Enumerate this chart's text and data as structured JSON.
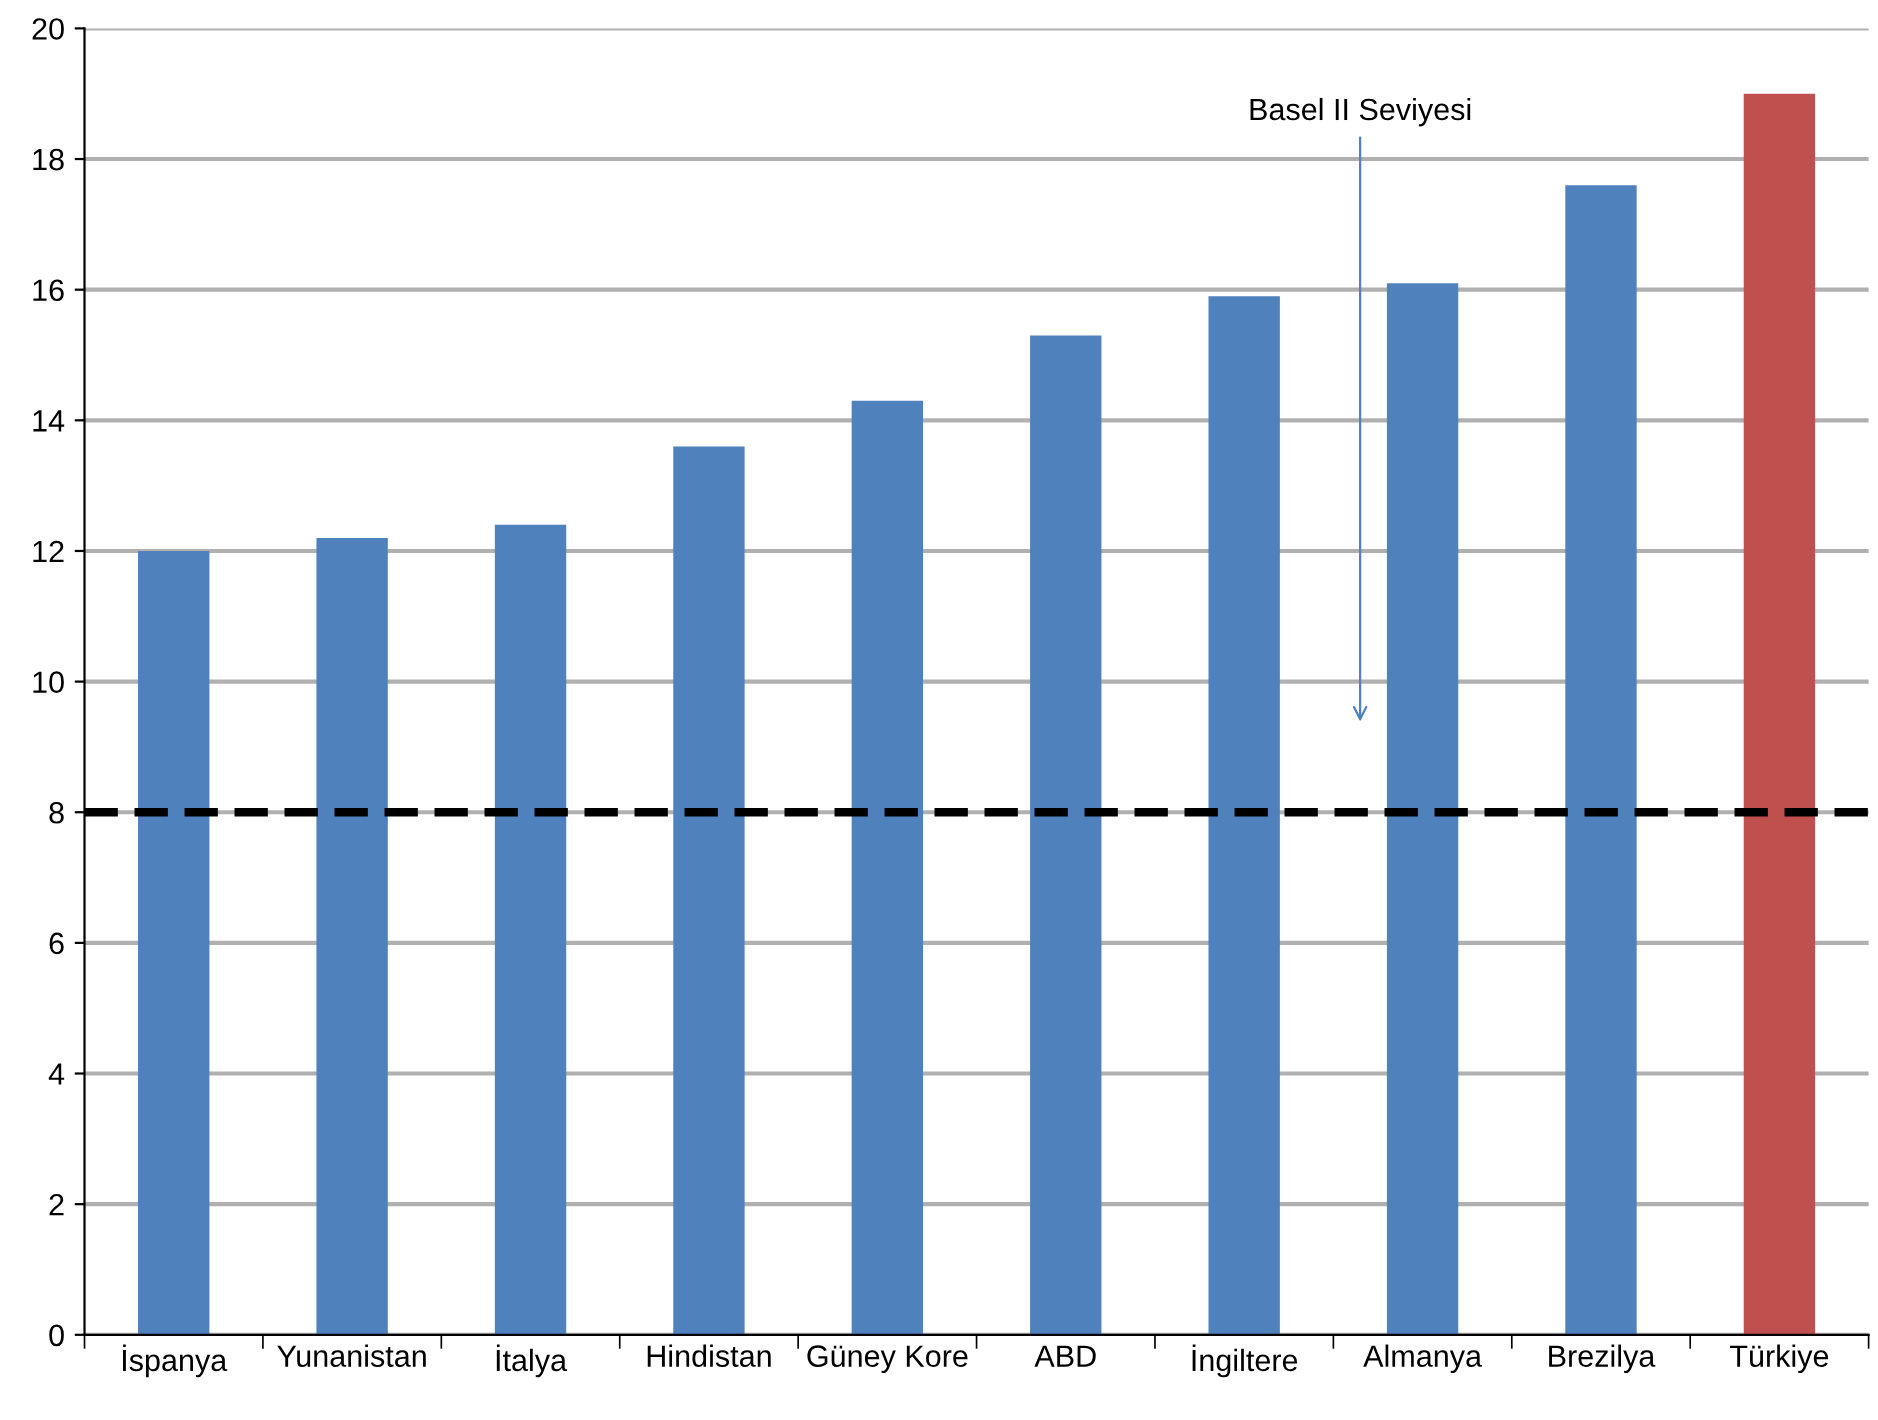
{
  "chart_data": {
    "type": "bar",
    "categories": [
      "İspanya",
      "Yunanistan",
      "İtalya",
      "Hindistan",
      "Güney Kore",
      "ABD",
      "İngiltere",
      "Almanya",
      "Brezilya",
      "Türkiye"
    ],
    "values": [
      12.0,
      12.2,
      12.4,
      13.6,
      14.3,
      15.3,
      15.9,
      16.1,
      17.6,
      19.0
    ],
    "colors": [
      "#4f81bd",
      "#4f81bd",
      "#4f81bd",
      "#4f81bd",
      "#4f81bd",
      "#4f81bd",
      "#4f81bd",
      "#4f81bd",
      "#4f81bd",
      "#c0504d"
    ],
    "ylim": [
      0,
      20
    ],
    "yticks": [
      0,
      2,
      4,
      6,
      8,
      10,
      12,
      14,
      16,
      18,
      20
    ],
    "grid": "y",
    "ref_lines": [
      {
        "axis": "y",
        "value": 8,
        "label": "Basel II Seviyesi",
        "color": "#000000",
        "line_style": "dashed"
      }
    ]
  }
}
